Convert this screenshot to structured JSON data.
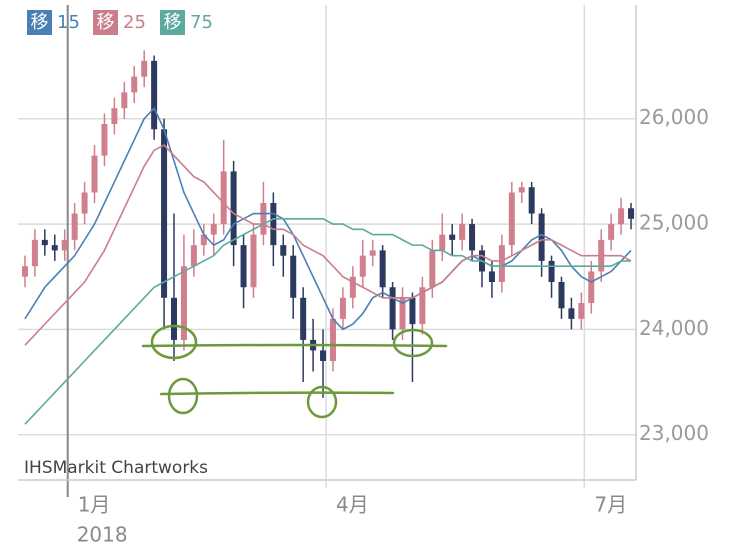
{
  "chart_data": {
    "type": "candlestick",
    "watermark": "IHSMarkit Chartworks",
    "categories": [
      null,
      null,
      null,
      null,
      "1月",
      null,
      null,
      null,
      null,
      null,
      null,
      null,
      null,
      null,
      null,
      null,
      null,
      null,
      null,
      null,
      null,
      null,
      null,
      null,
      null,
      null,
      null,
      null,
      null,
      null,
      "4月",
      null,
      null,
      null,
      null,
      null,
      null,
      null,
      null,
      null,
      null,
      null,
      null,
      null,
      null,
      null,
      null,
      null,
      null,
      null,
      null,
      null,
      null,
      null,
      null,
      null,
      "7月",
      null,
      null,
      null,
      null,
      null
    ],
    "year_label": "2018",
    "open": [
      24500,
      24600,
      24850,
      24800,
      24750,
      24850,
      25100,
      25300,
      25650,
      25950,
      26100,
      26250,
      26400,
      26550,
      25900,
      24300,
      23900,
      24600,
      24800,
      24900,
      25000,
      25500,
      24800,
      24400,
      24900,
      25200,
      24800,
      24700,
      24300,
      23900,
      23800,
      23700,
      24100,
      24300,
      24500,
      24700,
      24750,
      24400,
      24000,
      24300,
      24050,
      24400,
      24750,
      24900,
      24850,
      25000,
      24750,
      24550,
      24450,
      24800,
      25300,
      25350,
      25100,
      24650,
      24450,
      24200,
      24100,
      24250,
      24550,
      24850,
      25000,
      25150
    ],
    "high": [
      24700,
      24950,
      24950,
      24900,
      24950,
      25200,
      25400,
      25750,
      26050,
      26200,
      26350,
      26500,
      26650,
      26600,
      26000,
      25100,
      24900,
      24950,
      25000,
      25100,
      25800,
      25600,
      24900,
      25000,
      25400,
      25300,
      24900,
      24800,
      24400,
      24100,
      24000,
      24200,
      24400,
      24600,
      24850,
      24850,
      24800,
      24450,
      24400,
      24350,
      24500,
      24850,
      25100,
      25000,
      25100,
      25050,
      24800,
      24650,
      24900,
      25400,
      25400,
      25400,
      25150,
      24700,
      24500,
      24300,
      24350,
      24650,
      24950,
      25100,
      25250,
      25200
    ],
    "low": [
      24400,
      24500,
      24700,
      24650,
      24650,
      24750,
      25000,
      25200,
      25550,
      25850,
      26000,
      26150,
      26300,
      25800,
      24000,
      23700,
      23800,
      24500,
      24700,
      24700,
      24900,
      24600,
      24200,
      24300,
      24800,
      24600,
      24500,
      24100,
      23500,
      23600,
      23350,
      23600,
      24000,
      24200,
      24400,
      24600,
      24300,
      23900,
      23900,
      23500,
      23950,
      24300,
      24650,
      24700,
      24750,
      24650,
      24400,
      24300,
      24350,
      24700,
      25200,
      25000,
      24500,
      24300,
      24100,
      24000,
      24000,
      24150,
      24450,
      24750,
      24900,
      24950
    ],
    "close": [
      24600,
      24850,
      24800,
      24750,
      24850,
      25100,
      25300,
      25650,
      25950,
      26100,
      26250,
      26400,
      26550,
      25900,
      24300,
      23900,
      24600,
      24800,
      24900,
      25000,
      25500,
      24800,
      24400,
      24900,
      25200,
      24800,
      24700,
      24300,
      23900,
      23800,
      23700,
      24100,
      24300,
      24500,
      24700,
      24750,
      24400,
      24000,
      24300,
      24050,
      24400,
      24750,
      24900,
      24850,
      25000,
      24750,
      24550,
      24450,
      24800,
      25300,
      25350,
      25100,
      24650,
      24450,
      24200,
      24100,
      24250,
      24550,
      24850,
      25000,
      25150,
      25050
    ],
    "up_color": "#d07f8c",
    "down_color": "#2c3a60",
    "ma_prefix": "移",
    "series": [
      {
        "name": "15",
        "color": "#4a80b4",
        "values": [
          24100,
          24250,
          24400,
          24500,
          24600,
          24700,
          24850,
          25000,
          25200,
          25400,
          25600,
          25800,
          26000,
          26100,
          25900,
          25600,
          25300,
          25100,
          24900,
          24800,
          24850,
          25000,
          25050,
          25100,
          25100,
          25100,
          25050,
          24900,
          24700,
          24500,
          24300,
          24100,
          24000,
          24050,
          24150,
          24300,
          24350,
          24300,
          24250,
          24300,
          24350,
          24400,
          24450,
          24550,
          24650,
          24700,
          24650,
          24600,
          24600,
          24650,
          24750,
          24850,
          24900,
          24850,
          24750,
          24600,
          24500,
          24450,
          24500,
          24550,
          24650,
          24750
        ]
      },
      {
        "name": "25",
        "color": "#cc7d8a",
        "values": [
          23850,
          23950,
          24050,
          24150,
          24250,
          24350,
          24450,
          24600,
          24750,
          24950,
          25150,
          25350,
          25550,
          25700,
          25750,
          25650,
          25550,
          25450,
          25400,
          25300,
          25200,
          25100,
          25050,
          25000,
          25000,
          24950,
          24950,
          24900,
          24800,
          24750,
          24700,
          24600,
          24500,
          24450,
          24400,
          24350,
          24300,
          24300,
          24300,
          24300,
          24350,
          24400,
          24450,
          24550,
          24650,
          24700,
          24700,
          24650,
          24650,
          24700,
          24750,
          24800,
          24850,
          24850,
          24800,
          24750,
          24700,
          24700,
          24700,
          24700,
          24700,
          24650
        ]
      },
      {
        "name": "75",
        "color": "#5ea99f",
        "values": [
          23100,
          23200,
          23300,
          23400,
          23500,
          23600,
          23700,
          23800,
          23900,
          24000,
          24100,
          24200,
          24300,
          24400,
          24450,
          24500,
          24550,
          24600,
          24650,
          24700,
          24800,
          24850,
          24900,
          24950,
          25000,
          25050,
          25050,
          25050,
          25050,
          25050,
          25050,
          25000,
          25000,
          24950,
          24950,
          24900,
          24900,
          24900,
          24850,
          24800,
          24800,
          24750,
          24750,
          24700,
          24700,
          24650,
          24650,
          24600,
          24600,
          24600,
          24600,
          24600,
          24600,
          24600,
          24600,
          24600,
          24600,
          24600,
          24600,
          24600,
          24650,
          24650
        ]
      }
    ],
    "ylim": [
      22570,
      27080
    ],
    "yticks": [
      {
        "value": 23000,
        "label": "23,000"
      },
      {
        "value": 24000,
        "label": "24,000"
      },
      {
        "value": 25000,
        "label": "25,000"
      },
      {
        "value": 26000,
        "label": "26,000"
      }
    ],
    "grid": true
  }
}
